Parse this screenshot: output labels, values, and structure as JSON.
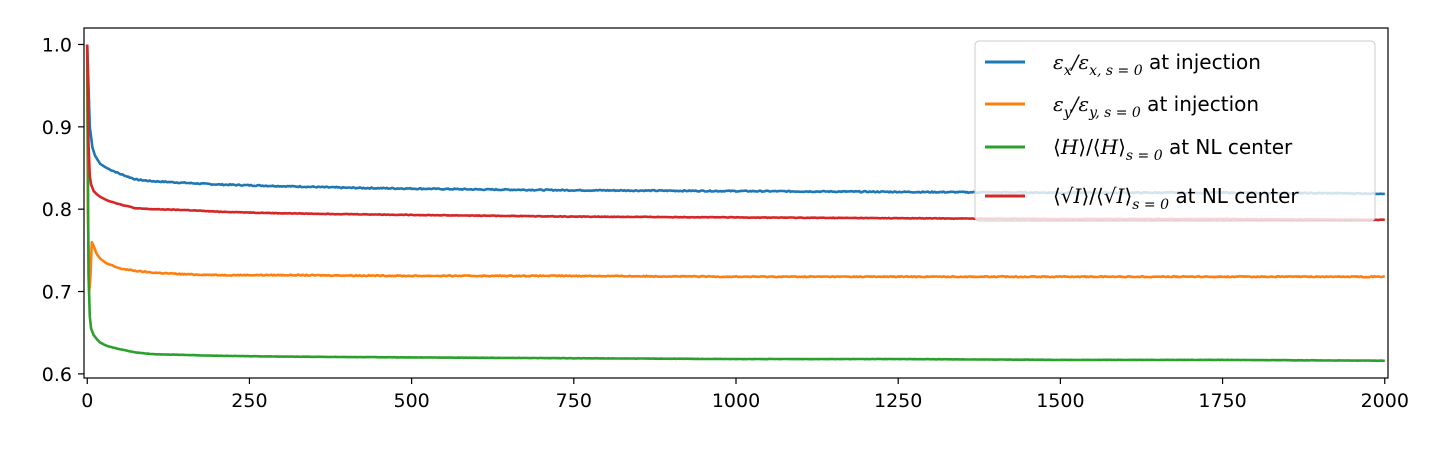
{
  "chart_data": {
    "type": "line",
    "title": "",
    "xlabel": "",
    "ylabel": "",
    "xlim": [
      -5,
      2005
    ],
    "ylim": [
      0.595,
      1.02
    ],
    "x_ticks": [
      0,
      250,
      500,
      750,
      1000,
      1250,
      1500,
      1750,
      2000
    ],
    "x_tick_labels": [
      "0",
      "250",
      "500",
      "750",
      "1000",
      "1250",
      "1500",
      "1750",
      "2000"
    ],
    "y_ticks": [
      0.6,
      0.7,
      0.8,
      0.9,
      1.0
    ],
    "y_tick_labels": [
      "0.6",
      "0.7",
      "0.8",
      "0.9",
      "1.0"
    ],
    "grid": false,
    "legend_position": "top-right",
    "series": [
      {
        "legend_pre": "ε",
        "legend_sub1": "x",
        "legend_mid": "/ε",
        "legend_sub2": "x, s = 0",
        "legend_post": " at injection",
        "color": "#1f77b4",
        "x": [
          0,
          2,
          4,
          8,
          12,
          20,
          30,
          50,
          75,
          100,
          150,
          200,
          250,
          300,
          400,
          500,
          600,
          750,
          1000,
          1250,
          1500,
          1750,
          2000
        ],
        "y": [
          1.0,
          0.95,
          0.9,
          0.875,
          0.865,
          0.855,
          0.85,
          0.843,
          0.836,
          0.834,
          0.832,
          0.83,
          0.829,
          0.828,
          0.826,
          0.825,
          0.824,
          0.823,
          0.822,
          0.821,
          0.82,
          0.82,
          0.819
        ]
      },
      {
        "legend_pre": "ε",
        "legend_sub1": "y",
        "legend_mid": "/ε",
        "legend_sub2": "y, s = 0",
        "legend_post": " at injection",
        "color": "#ff7f0e",
        "x": [
          0,
          1,
          3,
          5,
          7,
          10,
          15,
          20,
          30,
          50,
          75,
          100,
          150,
          200,
          300,
          500,
          750,
          1000,
          1250,
          1500,
          1750,
          2000
        ],
        "y": [
          1.0,
          0.8,
          0.7,
          0.72,
          0.76,
          0.755,
          0.745,
          0.74,
          0.734,
          0.728,
          0.725,
          0.723,
          0.721,
          0.72,
          0.72,
          0.719,
          0.719,
          0.718,
          0.718,
          0.718,
          0.718,
          0.718
        ]
      },
      {
        "legend_pre": "⟨",
        "legend_var": "H",
        "legend_mid": "⟩/⟨",
        "legend_var2": "H",
        "legend_mid2": "⟩",
        "legend_sub2": "s = 0",
        "legend_post": " at NL center",
        "color": "#2ca02c",
        "x": [
          0,
          1,
          2,
          4,
          6,
          10,
          15,
          20,
          30,
          50,
          75,
          100,
          150,
          200,
          300,
          500,
          750,
          1000,
          1250,
          1500,
          1750,
          2000
        ],
        "y": [
          1.0,
          0.85,
          0.72,
          0.67,
          0.655,
          0.647,
          0.642,
          0.638,
          0.634,
          0.63,
          0.626,
          0.624,
          0.623,
          0.622,
          0.621,
          0.62,
          0.619,
          0.618,
          0.618,
          0.617,
          0.617,
          0.616
        ]
      },
      {
        "legend_pre": "⟨√",
        "legend_var": "I",
        "legend_mid": "⟩/⟨√",
        "legend_var2": "I",
        "legend_mid2": "⟩",
        "legend_sub2": "s = 0",
        "legend_post": " at NL center",
        "color": "#d62728",
        "x": [
          0,
          1,
          2,
          4,
          6,
          10,
          15,
          20,
          30,
          50,
          75,
          100,
          150,
          200,
          300,
          500,
          750,
          1000,
          1250,
          1500,
          1750,
          2000
        ],
        "y": [
          1.0,
          0.95,
          0.88,
          0.84,
          0.83,
          0.822,
          0.818,
          0.815,
          0.811,
          0.806,
          0.801,
          0.8,
          0.799,
          0.797,
          0.795,
          0.793,
          0.791,
          0.79,
          0.789,
          0.788,
          0.788,
          0.787
        ]
      }
    ]
  }
}
